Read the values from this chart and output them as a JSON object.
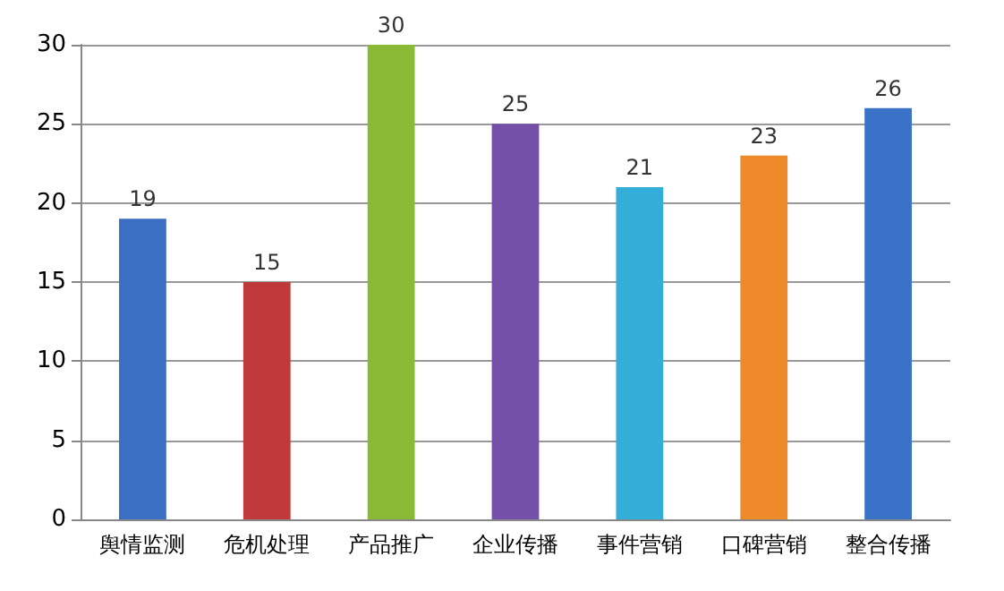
{
  "chart_data": {
    "type": "bar",
    "categories": [
      "舆情监测",
      "危机处理",
      "产品推广",
      "企业传播",
      "事件营销",
      "口碑营销",
      "整合传播"
    ],
    "values": [
      19,
      15,
      30,
      25,
      21,
      23,
      26
    ],
    "colors": [
      "#3a6fc4",
      "#c0393b",
      "#8ab936",
      "#7450a8",
      "#33aed8",
      "#ee8a2a",
      "#3a72c8"
    ],
    "ylim": [
      0,
      30
    ],
    "yticks": [
      0,
      5,
      10,
      15,
      20,
      25,
      30
    ],
    "grid": "y",
    "data_labels": true
  }
}
